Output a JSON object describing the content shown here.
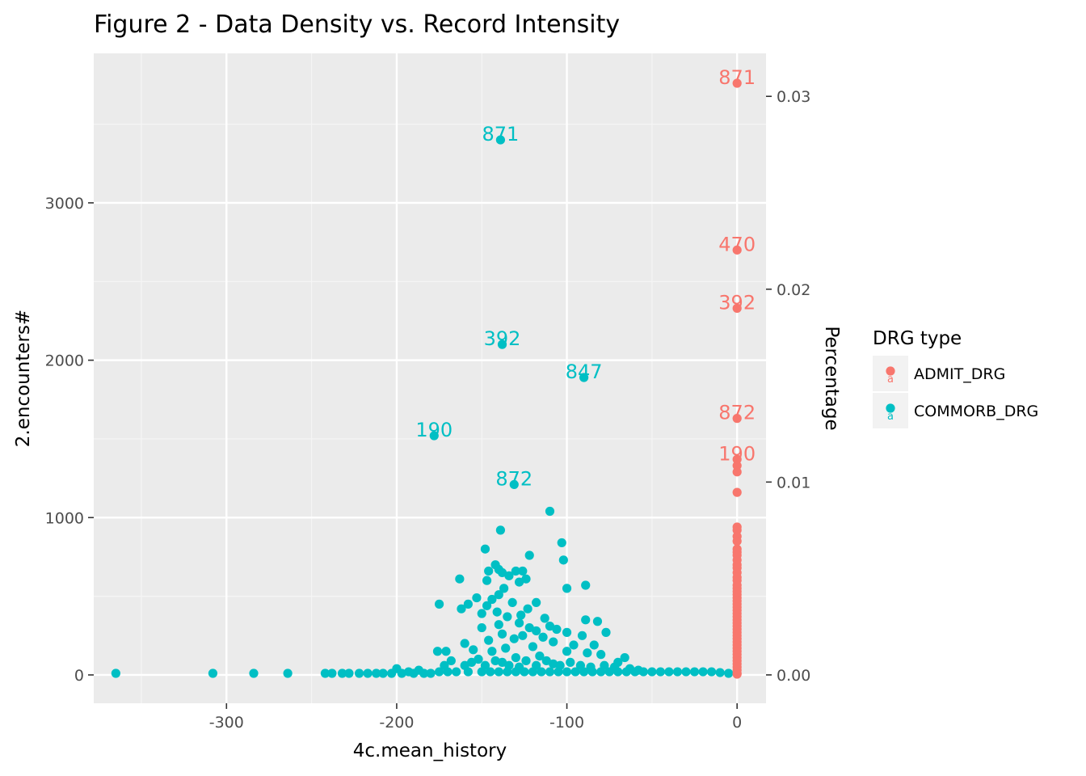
{
  "chart_data": {
    "type": "scatter",
    "title": "Figure 2 - Data Density vs. Record Intensity",
    "xlabel": "4c.mean_history",
    "ylabel": "2.encounters#",
    "y2label": "Percentage",
    "xlim": [
      -378,
      17
    ],
    "ylim": [
      -180,
      3950
    ],
    "y2lim": [
      -0.00147,
      0.03223
    ],
    "x_ticks": [
      -300,
      -200,
      -100,
      0
    ],
    "x_tick_labels": [
      "-300",
      "-200",
      "-100",
      "0"
    ],
    "y_ticks": [
      0,
      1000,
      2000,
      3000
    ],
    "y_tick_labels": [
      "0",
      "1000",
      "2000",
      "3000"
    ],
    "y2_ticks": [
      0.0,
      0.01,
      0.02,
      0.03
    ],
    "y2_tick_labels": [
      "0.00",
      "0.01",
      "0.02",
      "0.03"
    ],
    "grid": true,
    "legend": {
      "title": "DRG type",
      "position": "right",
      "entries": [
        {
          "name": "ADMIT_DRG",
          "color": "#F8766D"
        },
        {
          "name": "COMMORB_DRG",
          "color": "#00BFC4"
        }
      ]
    },
    "series": [
      {
        "name": "ADMIT_DRG",
        "color": "#F8766D",
        "points": [
          [
            0,
            3760
          ],
          [
            0,
            2700
          ],
          [
            0,
            2330
          ],
          [
            0,
            1630
          ],
          [
            0,
            1370
          ],
          [
            0,
            1330
          ],
          [
            0,
            1290
          ],
          [
            0,
            1160
          ],
          [
            0,
            940
          ],
          [
            0,
            920
          ],
          [
            0,
            880
          ],
          [
            0,
            850
          ],
          [
            0,
            800
          ],
          [
            0,
            780
          ],
          [
            0,
            760
          ],
          [
            0,
            730
          ],
          [
            0,
            700
          ],
          [
            0,
            680
          ],
          [
            0,
            650
          ],
          [
            0,
            620
          ],
          [
            0,
            600
          ],
          [
            0,
            570
          ],
          [
            0,
            550
          ],
          [
            0,
            530
          ],
          [
            0,
            510
          ],
          [
            0,
            490
          ],
          [
            0,
            470
          ],
          [
            0,
            450
          ],
          [
            0,
            430
          ],
          [
            0,
            410
          ],
          [
            0,
            390
          ],
          [
            0,
            370
          ],
          [
            0,
            350
          ],
          [
            0,
            330
          ],
          [
            0,
            310
          ],
          [
            0,
            290
          ],
          [
            0,
            270
          ],
          [
            0,
            250
          ],
          [
            0,
            230
          ],
          [
            0,
            210
          ],
          [
            0,
            190
          ],
          [
            0,
            170
          ],
          [
            0,
            150
          ],
          [
            0,
            130
          ],
          [
            0,
            110
          ],
          [
            0,
            90
          ],
          [
            0,
            70
          ],
          [
            0,
            50
          ],
          [
            0,
            30
          ],
          [
            0,
            10
          ],
          [
            0,
            5
          ]
        ],
        "labels": [
          {
            "x": 0,
            "y": 3760,
            "text": "871"
          },
          {
            "x": 0,
            "y": 2700,
            "text": "470"
          },
          {
            "x": 0,
            "y": 2330,
            "text": "392"
          },
          {
            "x": 0,
            "y": 1630,
            "text": "872"
          },
          {
            "x": 0,
            "y": 1370,
            "text": "190"
          }
        ]
      },
      {
        "name": "COMMORB_DRG",
        "color": "#00BFC4",
        "points": [
          [
            -139,
            3400
          ],
          [
            -138,
            2100
          ],
          [
            -90,
            1890
          ],
          [
            -178,
            1520
          ],
          [
            -131,
            1210
          ],
          [
            -110,
            1040
          ],
          [
            -139,
            920
          ],
          [
            -103,
            840
          ],
          [
            -148,
            800
          ],
          [
            -102,
            730
          ],
          [
            -122,
            760
          ],
          [
            -142,
            700
          ],
          [
            -146,
            660
          ],
          [
            -140,
            670
          ],
          [
            -130,
            660
          ],
          [
            -126,
            660
          ],
          [
            -138,
            650
          ],
          [
            -147,
            600
          ],
          [
            -134,
            630
          ],
          [
            -128,
            590
          ],
          [
            -163,
            610
          ],
          [
            -89,
            570
          ],
          [
            -124,
            610
          ],
          [
            -100,
            550
          ],
          [
            -137,
            550
          ],
          [
            -140,
            510
          ],
          [
            -153,
            490
          ],
          [
            -144,
            480
          ],
          [
            -132,
            460
          ],
          [
            -158,
            450
          ],
          [
            -118,
            460
          ],
          [
            -175,
            450
          ],
          [
            -147,
            440
          ],
          [
            -123,
            420
          ],
          [
            -162,
            420
          ],
          [
            -141,
            400
          ],
          [
            -150,
            390
          ],
          [
            -127,
            380
          ],
          [
            -135,
            370
          ],
          [
            -113,
            360
          ],
          [
            -89,
            350
          ],
          [
            -82,
            340
          ],
          [
            -128,
            330
          ],
          [
            -140,
            320
          ],
          [
            -150,
            300
          ],
          [
            -122,
            300
          ],
          [
            -110,
            310
          ],
          [
            -106,
            290
          ],
          [
            -118,
            280
          ],
          [
            -100,
            270
          ],
          [
            -77,
            270
          ],
          [
            -138,
            260
          ],
          [
            -126,
            250
          ],
          [
            -91,
            250
          ],
          [
            -114,
            240
          ],
          [
            -131,
            230
          ],
          [
            -146,
            220
          ],
          [
            -160,
            200
          ],
          [
            -108,
            210
          ],
          [
            -96,
            190
          ],
          [
            -84,
            190
          ],
          [
            -120,
            180
          ],
          [
            -136,
            170
          ],
          [
            -155,
            160
          ],
          [
            -176,
            150
          ],
          [
            -171,
            150
          ],
          [
            -144,
            150
          ],
          [
            -100,
            150
          ],
          [
            -88,
            140
          ],
          [
            -80,
            130
          ],
          [
            -66,
            110
          ],
          [
            -116,
            120
          ],
          [
            -130,
            110
          ],
          [
            -152,
            100
          ],
          [
            -124,
            90
          ],
          [
            -138,
            80
          ],
          [
            -108,
            70
          ],
          [
            -160,
            60
          ],
          [
            -200,
            40
          ],
          [
            -187,
            30
          ],
          [
            -193,
            20
          ],
          [
            -175,
            20
          ],
          [
            -170,
            20
          ],
          [
            -165,
            20
          ],
          [
            -158,
            20
          ],
          [
            -150,
            20
          ],
          [
            -145,
            20
          ],
          [
            -140,
            20
          ],
          [
            -135,
            20
          ],
          [
            -130,
            20
          ],
          [
            -125,
            20
          ],
          [
            -120,
            20
          ],
          [
            -115,
            20
          ],
          [
            -110,
            20
          ],
          [
            -105,
            20
          ],
          [
            -100,
            20
          ],
          [
            -95,
            20
          ],
          [
            -90,
            20
          ],
          [
            -85,
            20
          ],
          [
            -80,
            20
          ],
          [
            -75,
            20
          ],
          [
            -70,
            20
          ],
          [
            -65,
            20
          ],
          [
            -60,
            20
          ],
          [
            -55,
            20
          ],
          [
            -50,
            20
          ],
          [
            -45,
            20
          ],
          [
            -40,
            20
          ],
          [
            -35,
            20
          ],
          [
            -30,
            20
          ],
          [
            -25,
            20
          ],
          [
            -20,
            20
          ],
          [
            -15,
            20
          ],
          [
            -10,
            15
          ],
          [
            -5,
            10
          ],
          [
            -365,
            10
          ],
          [
            -308,
            10
          ],
          [
            -284,
            10
          ],
          [
            -264,
            10
          ],
          [
            -242,
            10
          ],
          [
            -238,
            10
          ],
          [
            -232,
            10
          ],
          [
            -228,
            10
          ],
          [
            -222,
            10
          ],
          [
            -217,
            10
          ],
          [
            -212,
            10
          ],
          [
            -208,
            10
          ],
          [
            -203,
            10
          ],
          [
            -197,
            10
          ],
          [
            -190,
            10
          ],
          [
            -184,
            10
          ],
          [
            -180,
            10
          ],
          [
            -172,
            60
          ],
          [
            -168,
            90
          ],
          [
            -156,
            80
          ],
          [
            -148,
            60
          ],
          [
            -142,
            90
          ],
          [
            -134,
            60
          ],
          [
            -128,
            50
          ],
          [
            -118,
            60
          ],
          [
            -112,
            90
          ],
          [
            -104,
            60
          ],
          [
            -98,
            80
          ],
          [
            -92,
            60
          ],
          [
            -86,
            50
          ],
          [
            -78,
            60
          ],
          [
            -72,
            50
          ],
          [
            -70,
            80
          ],
          [
            -63,
            40
          ],
          [
            -58,
            30
          ]
        ],
        "labels": [
          {
            "x": -139,
            "y": 3400,
            "text": "871"
          },
          {
            "x": -138,
            "y": 2100,
            "text": "392"
          },
          {
            "x": -90,
            "y": 1890,
            "text": "847"
          },
          {
            "x": -178,
            "y": 1520,
            "text": "190"
          },
          {
            "x": -131,
            "y": 1210,
            "text": "872"
          }
        ]
      }
    ]
  }
}
